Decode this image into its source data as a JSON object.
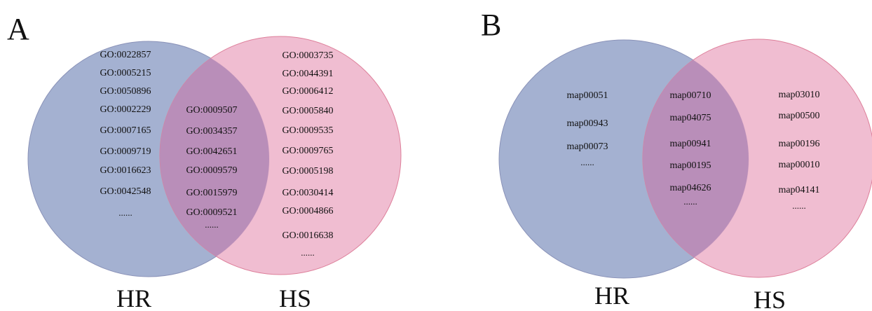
{
  "colors": {
    "hr_fill": "#9aa8cc",
    "hr_stroke": "#8a92b8",
    "hs_fill": "#eeb6cc",
    "hs_stroke": "#dd7f9a",
    "overlap": "#b98eb9"
  },
  "panelA": {
    "letter": "A",
    "left_label": "HR",
    "right_label": "HS",
    "left_only": [
      "GO:0022857",
      "GO:0005215",
      "GO:0050896",
      "GO:0002229",
      "GO:0007165",
      "GO:0009719",
      "GO:0016623",
      "GO:0042548",
      "......"
    ],
    "overlap": [
      "GO:0009507",
      "GO:0034357",
      "GO:0042651",
      "GO:0009579",
      "GO:0015979",
      "GO:0009521",
      "......"
    ],
    "right_only": [
      "GO:0003735",
      "GO:0044391",
      "GO:0006412",
      "GO:0005840",
      "GO:0009535",
      "GO:0009765",
      "GO:0005198",
      "GO:0030414",
      "GO:0004866",
      "GO:0016638",
      "......"
    ]
  },
  "panelB": {
    "letter": "B",
    "left_label": "HR",
    "right_label": "HS",
    "left_only": [
      "map00051",
      "map00943",
      "map00073",
      "......"
    ],
    "overlap": [
      "map00710",
      "map04075",
      "map00941",
      "map00195",
      "map04626",
      "......"
    ],
    "right_only": [
      "map03010",
      "map00500",
      "map00196",
      "map00010",
      "map04141",
      "......"
    ]
  }
}
